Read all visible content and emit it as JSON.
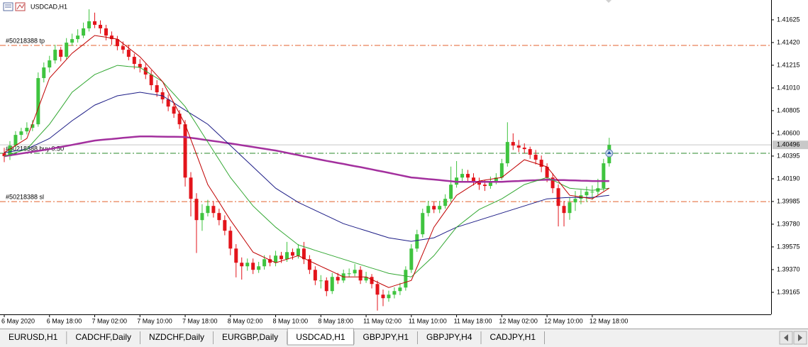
{
  "chart_data": {
    "type": "candlestick",
    "title": "USDCAD,H1",
    "categories": [
      "6 May 2020",
      null,
      null,
      null,
      null,
      null,
      null,
      null,
      "6 May 18:00",
      null,
      null,
      null,
      null,
      null,
      null,
      null,
      "7 May 02:00",
      null,
      null,
      null,
      null,
      null,
      null,
      null,
      "7 May 10:00",
      null,
      null,
      null,
      null,
      null,
      null,
      null,
      "7 May 18:00",
      null,
      null,
      null,
      null,
      null,
      null,
      null,
      "8 May 02:00",
      null,
      null,
      null,
      null,
      null,
      null,
      null,
      "8 May 10:00",
      null,
      null,
      null,
      null,
      null,
      null,
      null,
      "8 May 18:00",
      null,
      null,
      null,
      null,
      null,
      null,
      null,
      "11 May 02:00",
      null,
      null,
      null,
      null,
      null,
      null,
      null,
      "11 May 10:00",
      null,
      null,
      null,
      null,
      null,
      null,
      null,
      "11 May 18:00",
      null,
      null,
      null,
      null,
      null,
      null,
      null,
      "12 May 02:00",
      null,
      null,
      null,
      null,
      null,
      null,
      null,
      "12 May 10:00",
      null,
      null,
      null,
      null,
      null,
      null,
      null,
      "12 May 18:00",
      null,
      null,
      null
    ],
    "candles": {
      "up_color": "#3fc43f",
      "down_color": "#e3141b",
      "open": [
        1.4042,
        1.40394,
        1.4049,
        1.40586,
        1.40618,
        1.4065,
        1.40682,
        1.41099,
        1.41195,
        1.41259,
        1.41355,
        1.41291,
        1.41419,
        1.41451,
        1.41483,
        1.41548,
        1.41612,
        1.4158,
        1.41548,
        1.41483,
        1.41451,
        1.41387,
        1.41355,
        1.41291,
        1.41227,
        1.41195,
        1.41131,
        1.41035,
        1.40971,
        1.40907,
        1.40842,
        1.40778,
        1.40682,
        1.40201,
        1.40009,
        1.39817,
        1.39881,
        1.39945,
        1.39881,
        1.39817,
        1.39721,
        1.3956,
        1.39432,
        1.394,
        1.39432,
        1.39368,
        1.394,
        1.39464,
        1.39432,
        1.39496,
        1.39464,
        1.39528,
        1.39496,
        1.3956,
        1.39464,
        1.39368,
        1.39272,
        1.39272,
        1.39176,
        1.39304,
        1.39272,
        1.39336,
        1.39336,
        1.39368,
        1.39272,
        1.39304,
        1.3924,
        1.39144,
        1.39112,
        1.39144,
        1.39176,
        1.39208,
        1.39368,
        1.3956,
        1.39689,
        1.39881,
        1.39945,
        1.39913,
        1.39945,
        1.40009,
        1.40137,
        1.40201,
        1.40234,
        1.40201,
        1.40169,
        1.40137,
        1.40125,
        1.40169,
        1.40201,
        1.4033,
        1.40522,
        1.4049,
        1.40471,
        1.40458,
        1.40407,
        1.40362,
        1.40298,
        1.40201,
        1.40105,
        1.39945,
        1.39881,
        1.39977,
        1.40009,
        1.40041,
        1.40073,
        1.40073,
        1.40105,
        1.4033
      ],
      "high": [
        1.4047,
        1.4053,
        1.4062,
        1.4065,
        1.407,
        1.4072,
        1.4115,
        1.4124,
        1.413,
        1.414,
        1.4138,
        1.4146,
        1.415,
        1.4154,
        1.416,
        1.4172,
        1.4169,
        1.4162,
        1.4158,
        1.4152,
        1.4148,
        1.4143,
        1.414,
        1.4132,
        1.4127,
        1.4123,
        1.4117,
        1.4108,
        1.4101,
        1.4095,
        1.4088,
        1.4081,
        1.4072,
        1.4025,
        1.4006,
        1.3996,
        1.4,
        1.3999,
        1.3992,
        1.3986,
        1.3976,
        1.396,
        1.3948,
        1.3947,
        1.3947,
        1.3944,
        1.395,
        1.395,
        1.3954,
        1.3953,
        1.3962,
        1.3956,
        1.396,
        1.3962,
        1.395,
        1.394,
        1.3932,
        1.393,
        1.3934,
        1.3934,
        1.3937,
        1.3938,
        1.3942,
        1.394,
        1.3935,
        1.3933,
        1.3927,
        1.3919,
        1.3918,
        1.3921,
        1.3925,
        1.394,
        1.396,
        1.3973,
        1.3992,
        1.3999,
        1.3998,
        1.3999,
        1.4005,
        1.403,
        1.4035,
        1.4028,
        1.4027,
        1.4024,
        1.402,
        1.4018,
        1.4021,
        1.4024,
        1.4037,
        1.407,
        1.406,
        1.4054,
        1.4051,
        1.4048,
        1.4045,
        1.404,
        1.4033,
        1.4024,
        1.4014,
        1.3999,
        1.4002,
        1.4008,
        1.4009,
        1.4012,
        1.4013,
        1.4019,
        1.4037,
        1.4056
      ],
      "low": [
        1.4034,
        1.4036,
        1.4046,
        1.4054,
        1.4059,
        1.4062,
        1.4066,
        1.4106,
        1.4115,
        1.4123,
        1.4125,
        1.4127,
        1.4139,
        1.4142,
        1.4146,
        1.4152,
        1.4155,
        1.415,
        1.4144,
        1.414,
        1.4135,
        1.4132,
        1.4126,
        1.4118,
        1.4115,
        1.4109,
        1.4099,
        1.4093,
        1.4087,
        1.408,
        1.4074,
        1.4064,
        1.4012,
        1.3985,
        1.3952,
        1.3972,
        1.3985,
        1.3984,
        1.3977,
        1.3968,
        1.395,
        1.393,
        1.3928,
        1.3936,
        1.3933,
        1.3934,
        1.3937,
        1.394,
        1.394,
        1.3943,
        1.3944,
        1.3946,
        1.3947,
        1.3942,
        1.3933,
        1.3923,
        1.392,
        1.3913,
        1.3915,
        1.3924,
        1.3925,
        1.393,
        1.3931,
        1.3924,
        1.3925,
        1.392,
        1.39,
        1.3904,
        1.3908,
        1.3911,
        1.3914,
        1.3918,
        1.3934,
        1.3953,
        1.3966,
        1.3985,
        1.3988,
        1.3988,
        1.3992,
        1.3998,
        1.4011,
        1.4017,
        1.4016,
        1.4013,
        1.4009,
        1.4008,
        1.401,
        1.4014,
        1.4018,
        1.403,
        1.4045,
        1.4043,
        1.4042,
        1.4037,
        1.4032,
        1.4025,
        1.4016,
        1.4006,
        1.3976,
        1.3976,
        1.3982,
        1.399,
        1.3996,
        1.3998,
        1.4,
        1.4004,
        1.4008,
        1.403
      ],
      "close": [
        1.40394,
        1.4049,
        1.40586,
        1.40618,
        1.4065,
        1.40682,
        1.41099,
        1.41195,
        1.41259,
        1.41355,
        1.41291,
        1.41419,
        1.41451,
        1.41483,
        1.41548,
        1.41612,
        1.4158,
        1.41548,
        1.41483,
        1.41451,
        1.41387,
        1.41355,
        1.41291,
        1.41227,
        1.41195,
        1.41131,
        1.41035,
        1.40971,
        1.40907,
        1.40842,
        1.40778,
        1.40682,
        1.40201,
        1.40009,
        1.39817,
        1.39881,
        1.39945,
        1.39881,
        1.39817,
        1.39721,
        1.3956,
        1.39432,
        1.394,
        1.39432,
        1.39368,
        1.394,
        1.39464,
        1.39432,
        1.39496,
        1.39464,
        1.39528,
        1.39496,
        1.3956,
        1.39464,
        1.39368,
        1.39272,
        1.39272,
        1.39176,
        1.39304,
        1.39272,
        1.39336,
        1.39336,
        1.39368,
        1.39272,
        1.39304,
        1.3924,
        1.39144,
        1.39112,
        1.39144,
        1.39176,
        1.39208,
        1.39368,
        1.3956,
        1.39689,
        1.39881,
        1.39945,
        1.39913,
        1.39945,
        1.40009,
        1.40137,
        1.40201,
        1.40234,
        1.40201,
        1.40169,
        1.40137,
        1.40125,
        1.40169,
        1.40201,
        1.4033,
        1.40522,
        1.4049,
        1.40471,
        1.40458,
        1.40407,
        1.40362,
        1.40298,
        1.40201,
        1.40105,
        1.39945,
        1.39881,
        1.39977,
        1.40009,
        1.40041,
        1.40073,
        1.40073,
        1.40105,
        1.4033,
        1.40496
      ]
    },
    "lines": [
      {
        "color": "#a3309e",
        "width": 2.5,
        "values": [
          1.40394,
          1.40402,
          1.4041,
          1.40418,
          1.40426,
          1.40434,
          1.40442,
          1.4045,
          1.40458,
          1.40468,
          1.40477,
          1.40487,
          1.40496,
          1.40506,
          1.40516,
          1.40525,
          1.40535,
          1.4054,
          1.40545,
          1.40549,
          1.40554,
          1.40559,
          1.40564,
          1.40568,
          1.40573,
          1.40572,
          1.40572,
          1.40571,
          1.4057,
          1.40569,
          1.40569,
          1.40568,
          1.40567,
          1.4056,
          1.40553,
          1.40545,
          1.40538,
          1.40531,
          1.40524,
          1.40516,
          1.40509,
          1.40501,
          1.40493,
          1.40485,
          1.40477,
          1.40469,
          1.40461,
          1.40453,
          1.40445,
          1.40435,
          1.40424,
          1.40414,
          1.40404,
          1.40393,
          1.40383,
          1.40372,
          1.40362,
          1.40352,
          1.40343,
          1.40333,
          1.40324,
          1.40314,
          1.40304,
          1.40295,
          1.40285,
          1.40275,
          1.40264,
          1.40254,
          1.40244,
          1.40233,
          1.40223,
          1.40212,
          1.40202,
          1.40197,
          1.40192,
          1.40187,
          1.40183,
          1.40178,
          1.40173,
          1.40168,
          1.40163,
          1.40163,
          1.40163,
          1.40163,
          1.40163,
          1.40163,
          1.40163,
          1.40163,
          1.40163,
          1.40165,
          1.40168,
          1.4017,
          1.40173,
          1.40175,
          1.40177,
          1.4018,
          1.40182,
          1.40181,
          1.40179,
          1.40178,
          1.40176,
          1.40175,
          1.40173,
          1.40172,
          1.4017,
          1.4017,
          1.4017,
          1.4017
        ]
      },
      {
        "color": "#1c1c86",
        "width": 1,
        "values": [
          1.40426,
          1.40434,
          1.40442,
          1.4045,
          1.40458,
          1.40482,
          1.40506,
          1.4053,
          1.40554,
          1.40594,
          1.40634,
          1.40674,
          1.40714,
          1.40749,
          1.40784,
          1.4082,
          1.40855,
          1.40876,
          1.40897,
          1.40918,
          1.40939,
          1.40947,
          1.40955,
          1.40963,
          1.40971,
          1.40963,
          1.40955,
          1.40947,
          1.40939,
          1.40907,
          1.40875,
          1.40842,
          1.4081,
          1.40778,
          1.40746,
          1.40714,
          1.40682,
          1.40634,
          1.40586,
          1.40538,
          1.4049,
          1.40442,
          1.40394,
          1.40346,
          1.40298,
          1.4025,
          1.40202,
          1.40153,
          1.40105,
          1.40073,
          1.40041,
          1.40009,
          1.39977,
          1.39953,
          1.39929,
          1.39905,
          1.39881,
          1.39857,
          1.39833,
          1.39809,
          1.39785,
          1.39769,
          1.39753,
          1.39737,
          1.39721,
          1.39705,
          1.39689,
          1.39673,
          1.39657,
          1.39649,
          1.39641,
          1.39633,
          1.39625,
          1.39633,
          1.39641,
          1.39649,
          1.39657,
          1.39681,
          1.39705,
          1.39729,
          1.39753,
          1.39769,
          1.39785,
          1.39801,
          1.39817,
          1.39833,
          1.39849,
          1.39865,
          1.39881,
          1.39897,
          1.39913,
          1.39929,
          1.39945,
          1.39961,
          1.39977,
          1.39993,
          1.40009,
          1.40012,
          1.40016,
          1.40019,
          1.40022,
          1.40022,
          1.40022,
          1.40022,
          1.40022,
          1.40028,
          1.40035,
          1.40041
        ]
      },
      {
        "color": "#33a833",
        "width": 1,
        "values": [
          1.40394,
          1.4041,
          1.40426,
          1.40442,
          1.40458,
          1.40514,
          1.4057,
          1.40626,
          1.40682,
          1.40754,
          1.40826,
          1.40899,
          1.40971,
          1.41011,
          1.41051,
          1.41091,
          1.41131,
          1.41152,
          1.41173,
          1.41193,
          1.41214,
          1.41209,
          1.41204,
          1.412,
          1.41195,
          1.41163,
          1.41131,
          1.41099,
          1.41067,
          1.41011,
          1.40955,
          1.40898,
          1.40842,
          1.40762,
          1.40682,
          1.40602,
          1.40522,
          1.40442,
          1.40362,
          1.40282,
          1.40202,
          1.40138,
          1.40074,
          1.40009,
          1.39945,
          1.39897,
          1.39849,
          1.39801,
          1.39753,
          1.39713,
          1.39673,
          1.39633,
          1.39593,
          1.39577,
          1.39561,
          1.39544,
          1.39528,
          1.39512,
          1.39496,
          1.3948,
          1.39464,
          1.39448,
          1.39432,
          1.39416,
          1.394,
          1.39384,
          1.39368,
          1.39352,
          1.39336,
          1.39328,
          1.3932,
          1.39312,
          1.39304,
          1.39352,
          1.394,
          1.39448,
          1.39496,
          1.3956,
          1.39625,
          1.39689,
          1.39753,
          1.39793,
          1.39833,
          1.39873,
          1.39913,
          1.39937,
          1.39961,
          1.39985,
          1.40009,
          1.40041,
          1.40073,
          1.40106,
          1.40138,
          1.40154,
          1.4017,
          1.40186,
          1.40202,
          1.40178,
          1.40154,
          1.40129,
          1.40105,
          1.401,
          1.40096,
          1.40091,
          1.40086,
          1.40092,
          1.40099,
          1.40105
        ]
      },
      {
        "color": "#c00000",
        "width": 1,
        "values": [
          1.40426,
          1.40458,
          1.4049,
          1.40522,
          1.40554,
          1.4069,
          1.40826,
          1.40963,
          1.41099,
          1.41155,
          1.41211,
          1.41267,
          1.41323,
          1.41363,
          1.41403,
          1.41444,
          1.41484,
          1.41476,
          1.41468,
          1.41459,
          1.41451,
          1.41411,
          1.41371,
          1.41331,
          1.41291,
          1.41235,
          1.41179,
          1.41123,
          1.41067,
          1.40971,
          1.40875,
          1.40778,
          1.40682,
          1.40546,
          1.4041,
          1.40274,
          1.40138,
          1.40058,
          1.39978,
          1.39897,
          1.39817,
          1.39745,
          1.39673,
          1.396,
          1.39528,
          1.39504,
          1.3948,
          1.39456,
          1.39432,
          1.39448,
          1.39464,
          1.3948,
          1.39496,
          1.39472,
          1.39448,
          1.39424,
          1.394,
          1.39376,
          1.39352,
          1.39328,
          1.39304,
          1.39304,
          1.39304,
          1.39304,
          1.39304,
          1.3928,
          1.39256,
          1.39232,
          1.39208,
          1.39224,
          1.3924,
          1.39256,
          1.39272,
          1.39392,
          1.39512,
          1.39633,
          1.39753,
          1.39825,
          1.39897,
          1.39969,
          1.40041,
          1.40073,
          1.40106,
          1.40138,
          1.4017,
          1.40178,
          1.40186,
          1.40194,
          1.40202,
          1.40242,
          1.40282,
          1.40322,
          1.40362,
          1.40346,
          1.4033,
          1.40314,
          1.40298,
          1.40234,
          1.4017,
          1.40105,
          1.40041,
          1.40033,
          1.40025,
          1.40017,
          1.40009,
          1.40041,
          1.40073,
          1.40105
        ]
      }
    ],
    "ylim": [
      1.38966,
      1.41804
    ],
    "yticks": [
      1.41625,
      {
        "value": 1.4142,
        "label": "1.41420"
      },
      1.41215,
      {
        "value": 1.4101,
        "label": "1.41010"
      },
      1.40805,
      {
        "value": 1.406,
        "label": "1.40600"
      },
      1.40395,
      {
        "value": 1.4019,
        "label": "1.40190"
      },
      1.39985,
      {
        "value": 1.3978,
        "label": "1.39780"
      },
      1.39575,
      {
        "value": 1.3937,
        "label": "1.39370"
      },
      1.39165
    ],
    "bid": 1.40496,
    "bid_color": "#c8c8c8",
    "orders": [
      {
        "label": "#50218388 tp",
        "value": 1.41394,
        "color": "#e4622c"
      },
      {
        "label": "#50218388 buy 0.50",
        "value": 1.4042,
        "color": "#2a8a2a"
      },
      {
        "label": "#50218388 sl",
        "value": 1.39984,
        "color": "#e4622c"
      }
    ],
    "tabs": [
      "EURUSD,H1",
      "CADCHF,Daily",
      "NZDCHF,Daily",
      "EURGBP,Daily",
      "USDCAD,H1",
      "GBPJPY,H1",
      "GBPJPY,H4",
      "CADJPY,H1"
    ],
    "active_tab": 4
  }
}
